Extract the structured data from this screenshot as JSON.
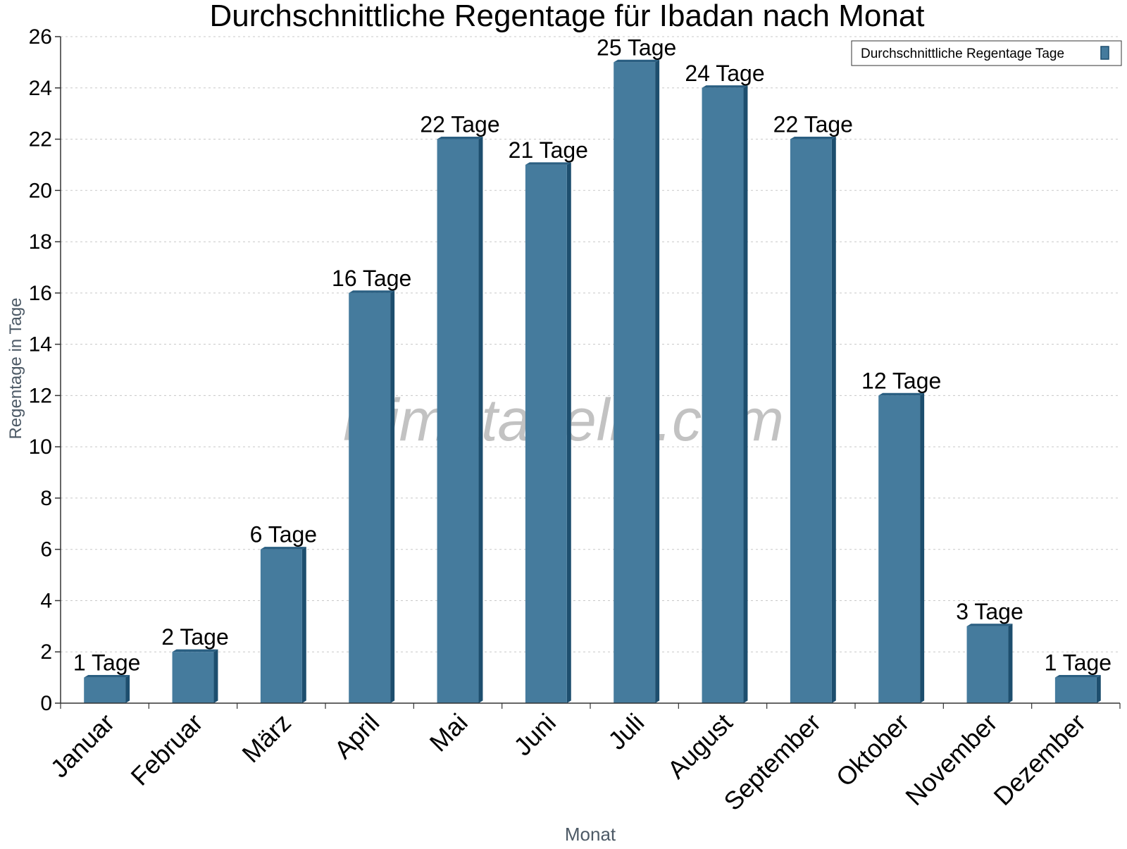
{
  "chart_data": {
    "type": "bar",
    "title": "Durchschnittliche Regentage für Ibadan nach Monat",
    "xlabel": "Monat",
    "ylabel": "Regentage in Tage",
    "categories": [
      "Januar",
      "Februar",
      "März",
      "April",
      "Mai",
      "Juni",
      "Juli",
      "August",
      "September",
      "Oktober",
      "November",
      "Dezember"
    ],
    "series": [
      {
        "name": "Durchschnittliche Regentage Tage",
        "values": [
          1,
          2,
          6,
          16,
          22,
          21,
          25,
          24,
          22,
          12,
          3,
          1
        ],
        "data_labels": [
          "1 Tage",
          "2 Tage",
          "6 Tage",
          "16 Tage",
          "22 Tage",
          "21 Tage",
          "25 Tage",
          "24 Tage",
          "22 Tage",
          "12 Tage",
          "3 Tage",
          "1 Tage"
        ]
      }
    ],
    "ylim": [
      0,
      26
    ],
    "yticks": [
      0,
      2,
      4,
      6,
      8,
      10,
      12,
      14,
      16,
      18,
      20,
      22,
      24,
      26
    ],
    "grid": true,
    "legend_position": "top-right",
    "colors": {
      "bar": "#457b9d",
      "bar_side": "#1d4e6e",
      "bar_top": "#2a5f82"
    }
  },
  "watermark": "klimatabelle.com"
}
